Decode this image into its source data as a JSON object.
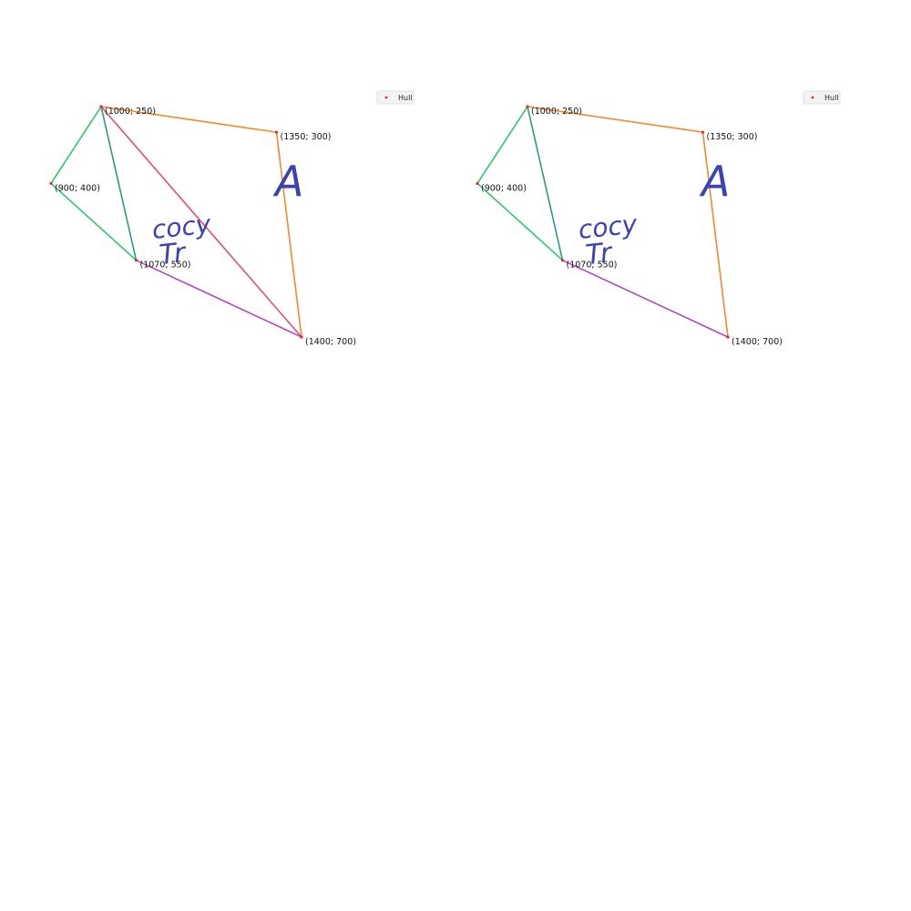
{
  "points": [
    {
      "id": "p1",
      "label": "(1000; 250)",
      "x": 1000,
      "y": 250
    },
    {
      "id": "p2",
      "label": "(1350; 300)",
      "x": 1350,
      "y": 300
    },
    {
      "id": "p3",
      "label": "(900; 400)",
      "x": 900,
      "y": 400
    },
    {
      "id": "p4",
      "label": "(1070; 550)",
      "x": 1070,
      "y": 550
    },
    {
      "id": "p5",
      "label": "(1400; 700)",
      "x": 1400,
      "y": 700
    }
  ],
  "legend": {
    "label": "Hull",
    "marker_color": "#e8282b"
  },
  "handwriting": {
    "big_letter": "A",
    "word_line1": "cocy",
    "word_line2": "Tr",
    "color": "#3a43b0"
  },
  "colors": {
    "orange": "#f28a2e",
    "green": "#2ec86a",
    "teal": "#2a9a86",
    "magenta": "#b24ac0",
    "pink": "#e0506e"
  },
  "panels": [
    {
      "name": "left-panel",
      "segments": [
        {
          "from": "p1",
          "to": "p2",
          "color": "orange"
        },
        {
          "from": "p2",
          "to": "p5",
          "color": "orange"
        },
        {
          "from": "p1",
          "to": "p3",
          "color": "green"
        },
        {
          "from": "p3",
          "to": "p4",
          "color": "green"
        },
        {
          "from": "p1",
          "to": "p4",
          "color": "teal"
        },
        {
          "from": "p4",
          "to": "p5",
          "color": "magenta"
        },
        {
          "from": "p1",
          "to": "p5",
          "color": "pink"
        }
      ]
    },
    {
      "name": "right-panel",
      "segments": [
        {
          "from": "p1",
          "to": "p2",
          "color": "orange"
        },
        {
          "from": "p2",
          "to": "p5",
          "color": "orange"
        },
        {
          "from": "p1",
          "to": "p3",
          "color": "green"
        },
        {
          "from": "p3",
          "to": "p4",
          "color": "green"
        },
        {
          "from": "p1",
          "to": "p4",
          "color": "teal"
        },
        {
          "from": "p4",
          "to": "p5",
          "color": "magenta"
        }
      ]
    }
  ]
}
